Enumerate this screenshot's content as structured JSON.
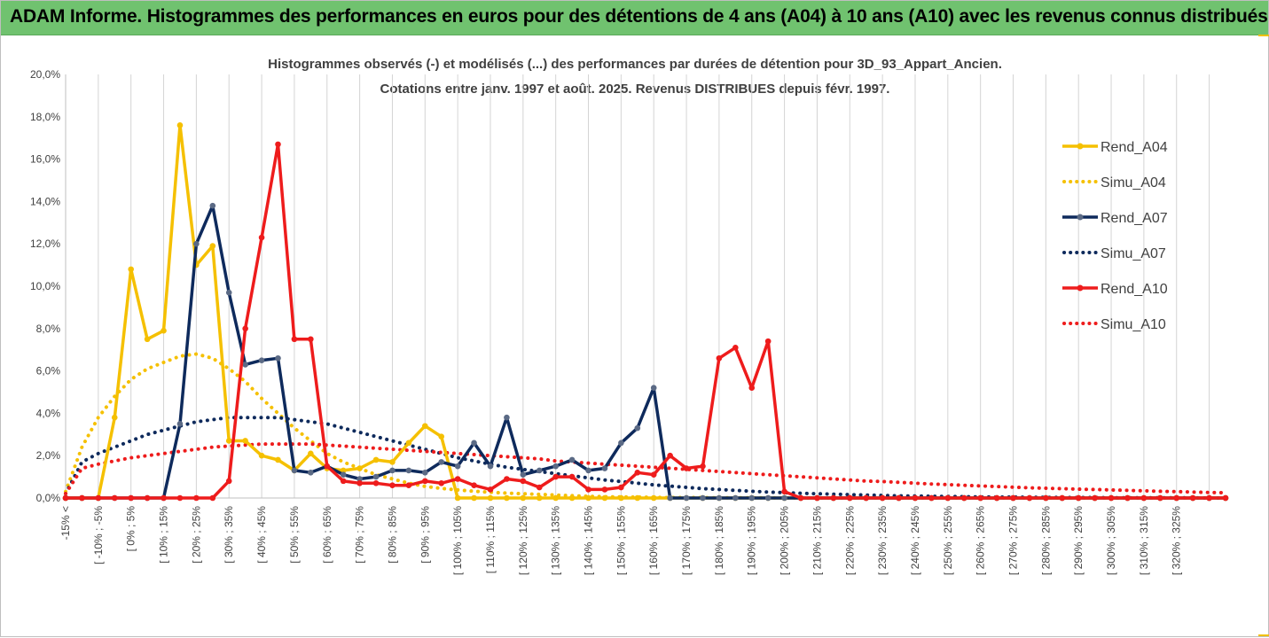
{
  "banner": {
    "title": "ADAM Informe. Histogrammes des performances en euros pour des détentions de 4 ans (A04) à 10 ans (A10) avec les revenus connus distribués"
  },
  "colors": {
    "A04": "#f5c000",
    "A07": "#0e2a5c",
    "A10": "#ee1c1c",
    "banner": "#70c26f",
    "grid": "#d0d0d0"
  },
  "chart_data": {
    "type": "line",
    "title": "Histogrammes observés (-) et modélisés (...) des performances par durées de détention pour 3D_93_Appart_Ancien.",
    "subtitle": "Cotations entre janv. 1997 et août. 2025. Revenus DISTRIBUES depuis févr. 1997.",
    "xlabel": "",
    "ylabel": "",
    "ylim": [
      0,
      20
    ],
    "y_ticks": [
      "0,0%",
      "2,0%",
      "4,0%",
      "6,0%",
      "8,0%",
      "10,0%",
      "12,0%",
      "14,0%",
      "16,0%",
      "18,0%",
      "20,0%"
    ],
    "grid": "vertical",
    "legend_position": "right",
    "x_labels": [
      "-15% <",
      "[ -10% ; -5%",
      "[ 0% ; 5%",
      "[ 10% ; 15%",
      "[ 20% ; 25%",
      "[ 30% ; 35%",
      "[ 40% ; 45%",
      "[ 50% ; 55%",
      "[ 60% ; 65%",
      "[ 70% ; 75%",
      "[ 80% ; 85%",
      "[ 90% ; 95%",
      "[ 100% ; 105%",
      "[ 110% ; 115%",
      "[ 120% ; 125%",
      "[ 130% ; 135%",
      "[ 140% ; 145%",
      "[ 150% ; 155%",
      "[ 160% ; 165%",
      "[ 170% ; 175%",
      "[ 180% ; 185%",
      "[ 190% ; 195%",
      "[ 200% ; 205%",
      "[ 210% ; 215%",
      "[ 220% ; 225%",
      "[ 230% ; 235%",
      "[ 240% ; 245%",
      "[ 250% ; 255%",
      "[ 260% ; 265%",
      "[ 270% ; 275%",
      "[ 280% ; 285%",
      "[ 290% ; 295%",
      "[ 300% ; 305%",
      "[ 310% ; 315%",
      "[ 320% ; 325%"
    ],
    "series": [
      {
        "name": "Rend_A04",
        "style": "solid",
        "color": "#f5c000",
        "values": [
          0,
          0,
          0,
          3.8,
          10.8,
          7.5,
          7.9,
          17.6,
          11,
          11.9,
          2.7,
          2.7,
          2,
          1.8,
          1.3,
          2.1,
          1.4,
          1.3,
          1.4,
          1.8,
          1.7,
          2.6,
          3.4,
          2.9,
          0,
          0,
          0,
          0,
          0,
          0,
          0,
          0,
          0,
          0,
          0,
          0,
          0,
          0,
          0,
          0,
          0,
          0,
          0,
          0,
          0,
          0,
          0,
          0,
          0,
          0,
          0,
          0,
          0,
          0,
          0,
          0,
          0,
          0,
          0,
          0,
          0,
          0,
          0,
          0,
          0,
          0,
          0,
          0,
          0,
          0,
          0,
          0
        ]
      },
      {
        "name": "Simu_A04",
        "style": "dotted",
        "color": "#f5c000",
        "values": [
          0.3,
          2.4,
          3.8,
          4.8,
          5.6,
          6.1,
          6.4,
          6.7,
          6.8,
          6.6,
          6.1,
          5.5,
          4.7,
          4,
          3.3,
          2.7,
          2.1,
          1.7,
          1.4,
          1.1,
          0.9,
          0.7,
          0.55,
          0.45,
          0.38,
          0.32,
          0.27,
          0.23,
          0.2,
          0.17,
          0.14,
          0.11,
          0.08,
          0.06,
          0.05,
          0.04,
          0.03,
          0.02,
          0.02,
          0.02,
          0.01,
          0.01,
          0.01,
          0.01,
          0,
          0,
          0,
          0,
          0,
          0,
          0,
          0,
          0,
          0,
          0,
          0,
          0,
          0,
          0,
          0,
          0,
          0,
          0,
          0,
          0,
          0,
          0,
          0,
          0,
          0,
          0,
          0
        ]
      },
      {
        "name": "Rend_A07",
        "style": "solid",
        "color": "#0e2a5c",
        "values": [
          0,
          0,
          0,
          0,
          0,
          0,
          0,
          3.5,
          12,
          13.8,
          9.7,
          6.3,
          6.5,
          6.6,
          1.3,
          1.2,
          1.5,
          1.1,
          0.9,
          1,
          1.3,
          1.3,
          1.2,
          1.7,
          1.5,
          2.6,
          1.5,
          3.8,
          1.1,
          1.3,
          1.5,
          1.8,
          1.3,
          1.4,
          2.6,
          3.3,
          5.2,
          0,
          0,
          0,
          0,
          0,
          0,
          0,
          0,
          0,
          0,
          0,
          0,
          0,
          0,
          0,
          0,
          0,
          0,
          0,
          0,
          0,
          0,
          0,
          0,
          0,
          0,
          0,
          0,
          0,
          0,
          0,
          0,
          0,
          0,
          0
        ]
      },
      {
        "name": "Simu_A07",
        "style": "dotted",
        "color": "#0e2a5c",
        "values": [
          0.2,
          1.7,
          2.1,
          2.4,
          2.7,
          3,
          3.2,
          3.4,
          3.6,
          3.7,
          3.8,
          3.8,
          3.8,
          3.8,
          3.7,
          3.6,
          3.5,
          3.3,
          3.1,
          2.9,
          2.7,
          2.5,
          2.3,
          2.1,
          1.9,
          1.75,
          1.6,
          1.45,
          1.35,
          1.25,
          1.15,
          1.05,
          0.95,
          0.85,
          0.78,
          0.7,
          0.62,
          0.56,
          0.5,
          0.44,
          0.4,
          0.36,
          0.32,
          0.28,
          0.25,
          0.22,
          0.2,
          0.18,
          0.16,
          0.14,
          0.12,
          0.1,
          0.09,
          0.08,
          0.07,
          0.06,
          0.05,
          0.04,
          0.04,
          0.03,
          0.03,
          0.02,
          0.02,
          0.02,
          0.01,
          0.01,
          0.01,
          0.01,
          0.01,
          0.01,
          0,
          0
        ]
      },
      {
        "name": "Rend_A10",
        "style": "solid",
        "color": "#ee1c1c",
        "values": [
          0,
          0,
          0,
          0,
          0,
          0,
          0,
          0,
          0,
          0,
          0.8,
          8,
          12.3,
          16.7,
          7.5,
          7.5,
          1.5,
          0.8,
          0.7,
          0.7,
          0.6,
          0.6,
          0.8,
          0.7,
          0.9,
          0.6,
          0.4,
          0.9,
          0.8,
          0.5,
          1,
          1,
          0.4,
          0.4,
          0.5,
          1.2,
          1.1,
          2,
          1.4,
          1.5,
          6.6,
          7.1,
          5.2,
          7.4,
          0.3,
          0,
          0,
          0,
          0,
          0,
          0,
          0,
          0,
          0,
          0,
          0,
          0,
          0,
          0,
          0,
          0,
          0,
          0,
          0,
          0,
          0,
          0,
          0,
          0,
          0,
          0,
          0
        ]
      },
      {
        "name": "Simu_A10",
        "style": "dotted",
        "color": "#ee1c1c",
        "values": [
          0.2,
          1.4,
          1.6,
          1.75,
          1.9,
          2,
          2.1,
          2.2,
          2.3,
          2.4,
          2.45,
          2.5,
          2.55,
          2.55,
          2.55,
          2.55,
          2.5,
          2.45,
          2.4,
          2.35,
          2.3,
          2.25,
          2.2,
          2.15,
          2.1,
          2.05,
          2,
          1.95,
          1.9,
          1.85,
          1.75,
          1.7,
          1.65,
          1.6,
          1.55,
          1.5,
          1.45,
          1.4,
          1.35,
          1.3,
          1.25,
          1.2,
          1.15,
          1.1,
          1.05,
          1,
          0.95,
          0.9,
          0.85,
          0.8,
          0.78,
          0.74,
          0.7,
          0.66,
          0.63,
          0.6,
          0.57,
          0.54,
          0.51,
          0.48,
          0.46,
          0.44,
          0.42,
          0.4,
          0.38,
          0.36,
          0.34,
          0.32,
          0.3,
          0.28,
          0.26,
          0.25
        ]
      }
    ]
  }
}
